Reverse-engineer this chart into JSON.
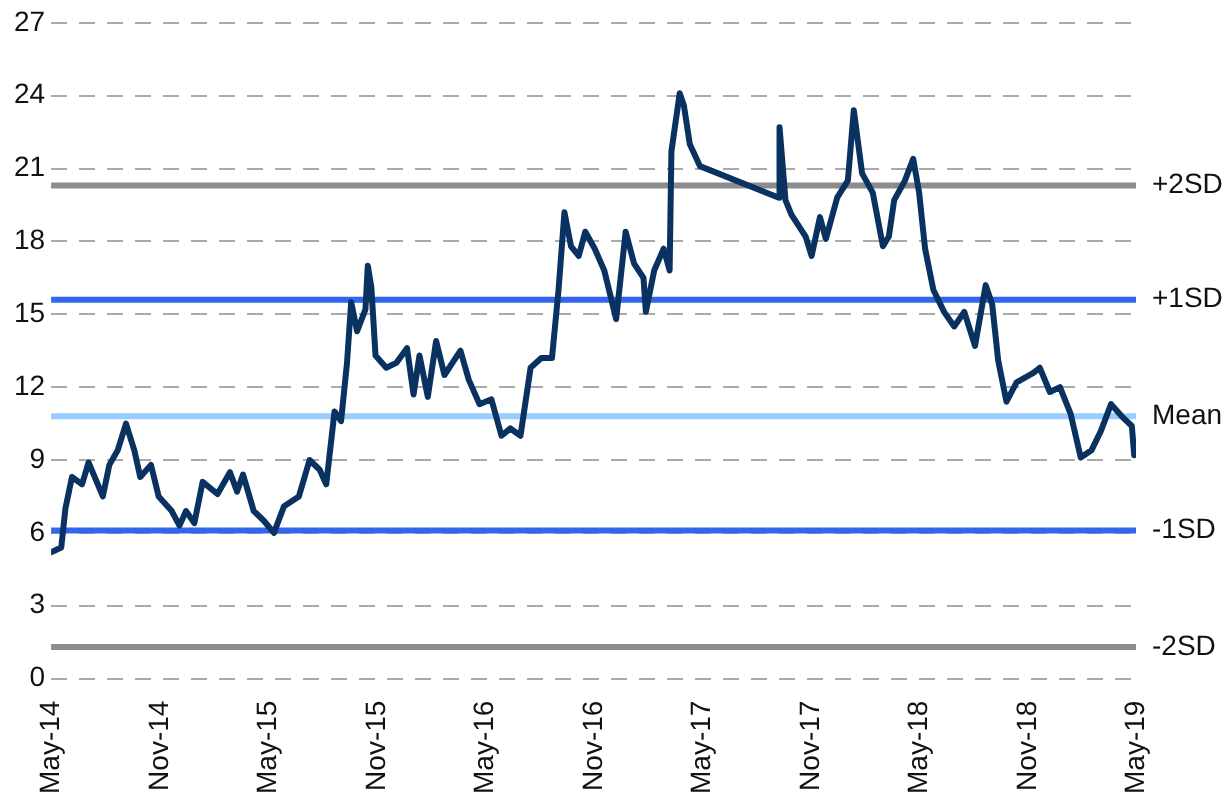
{
  "chart_data": {
    "type": "line",
    "x": [
      "2014-05-01",
      "2014-05-18",
      "2014-05-25",
      "2014-06-05",
      "2014-06-22",
      "2014-07-03",
      "2014-07-27",
      "2014-08-07",
      "2014-08-21",
      "2014-09-04",
      "2014-09-18",
      "2014-09-28",
      "2014-10-16",
      "2014-10-29",
      "2014-11-20",
      "2014-12-03",
      "2014-12-14",
      "2014-12-28",
      "2015-01-11",
      "2015-02-05",
      "2015-02-26",
      "2015-03-10",
      "2015-03-20",
      "2015-04-07",
      "2015-04-24",
      "2015-05-11",
      "2015-05-28",
      "2015-06-22",
      "2015-07-10",
      "2015-07-27",
      "2015-08-07",
      "2015-08-21",
      "2015-09-01",
      "2015-09-11",
      "2015-09-18",
      "2015-09-28",
      "2015-10-12",
      "2015-10-16",
      "2015-10-22",
      "2015-10-29",
      "2015-11-16",
      "2015-12-03",
      "2015-12-21",
      "2016-01-01",
      "2016-01-11",
      "2016-01-25",
      "2016-02-08",
      "2016-02-22",
      "2016-03-20",
      "2016-04-03",
      "2016-04-21",
      "2016-05-11",
      "2016-05-28",
      "2016-06-12",
      "2016-06-29",
      "2016-07-16",
      "2016-08-03",
      "2016-08-21",
      "2016-09-01",
      "2016-09-11",
      "2016-09-22",
      "2016-10-05",
      "2016-10-16",
      "2016-11-01",
      "2016-11-17",
      "2016-12-07",
      "2016-12-23",
      "2017-01-06",
      "2017-01-22",
      "2017-01-26",
      "2017-02-09",
      "2017-02-25",
      "2017-03-07",
      "2017-03-10",
      "2017-03-24",
      "2017-03-31",
      "2017-04-10",
      "2017-04-27",
      "2017-09-07",
      "2017-09-08",
      "2017-09-18",
      "2017-09-28",
      "2017-10-22",
      "2017-11-01",
      "2017-11-15",
      "2017-11-25",
      "2017-12-14",
      "2018-01-01",
      "2018-01-11",
      "2018-01-25",
      "2018-02-12",
      "2018-03-01",
      "2018-03-11",
      "2018-03-20",
      "2018-04-07",
      "2018-04-21",
      "2018-05-01",
      "2018-05-11",
      "2018-05-25",
      "2018-06-12",
      "2018-06-29",
      "2018-07-16",
      "2018-08-03",
      "2018-08-21",
      "2018-09-01",
      "2018-09-11",
      "2018-09-25",
      "2018-10-12",
      "2018-11-10",
      "2018-11-20",
      "2018-12-07",
      "2018-12-24",
      "2019-01-11",
      "2019-01-28",
      "2019-02-15",
      "2019-03-03",
      "2019-03-20",
      "2019-04-07",
      "2019-04-24",
      "2019-04-28"
    ],
    "series": [
      {
        "color": "#0a3260",
        "values": [
          5.2,
          5.4,
          7.0,
          8.3,
          8.0,
          8.9,
          7.5,
          8.8,
          9.4,
          10.5,
          9.4,
          8.3,
          8.8,
          7.5,
          6.9,
          6.3,
          6.9,
          6.4,
          8.1,
          7.6,
          8.5,
          7.7,
          8.4,
          6.9,
          6.5,
          6.0,
          7.1,
          7.5,
          9.0,
          8.6,
          8.0,
          11.0,
          10.6,
          13.0,
          15.5,
          14.3,
          15.2,
          17.0,
          16.1,
          13.3,
          12.8,
          13.0,
          13.6,
          11.7,
          13.3,
          11.6,
          13.9,
          12.5,
          13.5,
          12.3,
          11.3,
          11.5,
          10.0,
          10.3,
          10.0,
          12.8,
          13.2,
          13.2,
          16.0,
          19.2,
          17.8,
          17.4,
          18.4,
          17.7,
          16.8,
          14.8,
          18.4,
          17.1,
          16.5,
          15.1,
          16.8,
          17.7,
          16.8,
          21.7,
          24.1,
          23.6,
          22.0,
          21.1,
          19.8,
          22.7,
          19.7,
          19.1,
          18.2,
          17.4,
          19.0,
          18.1,
          19.8,
          20.5,
          23.4,
          20.8,
          20.0,
          17.8,
          18.2,
          19.7,
          20.5,
          21.4,
          20.0,
          17.7,
          16.0,
          15.1,
          14.5,
          15.1,
          13.7,
          16.2,
          15.4,
          13.1,
          11.4,
          12.2,
          12.6,
          12.8,
          11.8,
          12.0,
          10.9,
          9.1,
          9.4,
          10.2,
          11.3,
          10.8,
          10.4,
          9.2
        ]
      }
    ],
    "xlim": [
      "2014-05-01",
      "2019-05-01"
    ],
    "xticks": [
      {
        "value": "2014-05-01",
        "label": "May-14"
      },
      {
        "value": "2014-11-01",
        "label": "Nov-14"
      },
      {
        "value": "2015-05-01",
        "label": "May-15"
      },
      {
        "value": "2015-11-01",
        "label": "Nov-15"
      },
      {
        "value": "2016-05-01",
        "label": "May-16"
      },
      {
        "value": "2016-11-01",
        "label": "Nov-16"
      },
      {
        "value": "2017-05-01",
        "label": "May-17"
      },
      {
        "value": "2017-11-01",
        "label": "Nov-17"
      },
      {
        "value": "2018-05-01",
        "label": "May-18"
      },
      {
        "value": "2018-11-01",
        "label": "Nov-18"
      },
      {
        "value": "2019-05-01",
        "label": "May-19"
      }
    ],
    "ylim": [
      0,
      27
    ],
    "yticks": [
      0,
      3,
      6,
      9,
      12,
      15,
      18,
      21,
      24,
      27
    ],
    "grid": "y",
    "legend": false,
    "marker": "none",
    "line_style": "solid",
    "ref_lines": [
      {
        "axis": "y",
        "value": 20.3,
        "label": "+2SD",
        "color": "#8c8c8c"
      },
      {
        "axis": "y",
        "value": 15.6,
        "label": "+1SD",
        "color": "#3366ee"
      },
      {
        "axis": "y",
        "value": 10.8,
        "label": "Mean",
        "color": "#99ccff"
      },
      {
        "axis": "y",
        "value": 6.1,
        "label": "-1SD",
        "color": "#3366ee"
      },
      {
        "axis": "y",
        "value": 1.3,
        "label": "-2SD",
        "color": "#8c8c8c"
      }
    ]
  }
}
